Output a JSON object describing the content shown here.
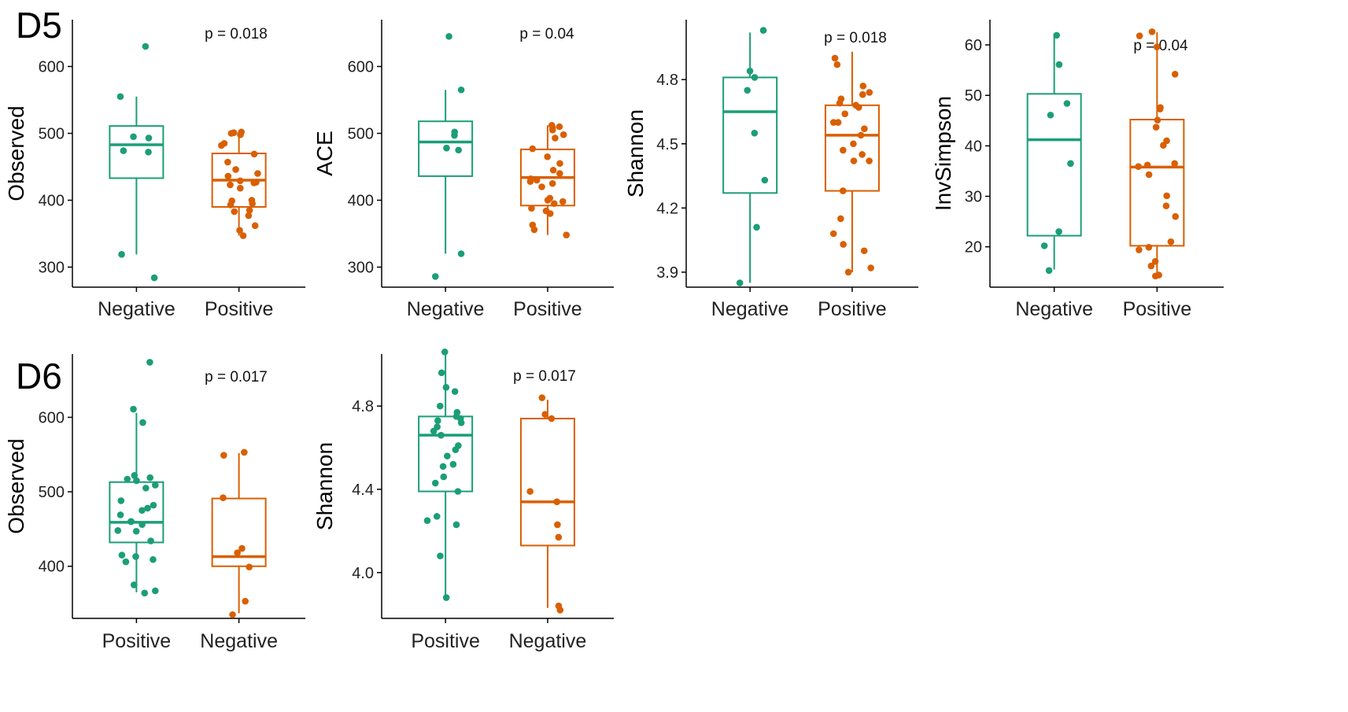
{
  "colors": {
    "green": "#1b9e77",
    "orange": "#d95f02",
    "axis": "#000000"
  },
  "rows": [
    {
      "label": "D5"
    },
    {
      "label": "D6"
    }
  ],
  "chart_data": [
    {
      "type": "boxplot",
      "row": "D5",
      "ylabel": "Observed",
      "p_text": "p = 0.018",
      "ylim": [
        270,
        670
      ],
      "yticks": [
        300,
        400,
        500,
        600
      ],
      "ytick_labels": [
        "300",
        "400",
        "500",
        "600"
      ],
      "groups": [
        {
          "name": "Negative",
          "color": "green",
          "box": {
            "q1": 433,
            "median": 483,
            "q3": 511,
            "lower": 319,
            "upper": 555
          },
          "points": [
            630,
            555,
            495,
            493,
            474,
            472,
            319,
            284
          ]
        },
        {
          "name": "Positive",
          "color": "orange",
          "box": {
            "q1": 390,
            "median": 430,
            "q3": 470,
            "lower": 347,
            "upper": 500
          },
          "points": [
            502,
            501,
            500,
            498,
            485,
            482,
            469,
            457,
            446,
            440,
            436,
            429,
            427,
            426,
            423,
            418,
            400,
            399,
            395,
            393,
            385,
            383,
            377,
            362,
            355,
            347
          ]
        }
      ]
    },
    {
      "type": "boxplot",
      "row": "D5",
      "ylabel": "ACE",
      "p_text": "p = 0.04",
      "ylim": [
        270,
        670
      ],
      "yticks": [
        300,
        400,
        500,
        600
      ],
      "ytick_labels": [
        "300",
        "400",
        "500",
        "600"
      ],
      "groups": [
        {
          "name": "Negative",
          "color": "green",
          "box": {
            "q1": 436,
            "median": 487,
            "q3": 518,
            "lower": 320,
            "upper": 565
          },
          "points": [
            645,
            565,
            502,
            497,
            478,
            475,
            320,
            286
          ]
        },
        {
          "name": "Positive",
          "color": "orange",
          "box": {
            "q1": 392,
            "median": 434,
            "q3": 476,
            "lower": 348,
            "upper": 512
          },
          "points": [
            512,
            510,
            508,
            505,
            498,
            493,
            477,
            465,
            455,
            445,
            440,
            432,
            430,
            428,
            425,
            420,
            403,
            400,
            398,
            395,
            388,
            384,
            380,
            363,
            356,
            348
          ]
        }
      ]
    },
    {
      "type": "boxplot",
      "row": "D5",
      "ylabel": "Shannon",
      "p_text": "p = 0.018",
      "ylim": [
        3.83,
        5.08
      ],
      "yticks": [
        3.9,
        4.2,
        4.5,
        4.8
      ],
      "ytick_labels": [
        "3.9",
        "4.2",
        "4.5",
        "4.8"
      ],
      "groups": [
        {
          "name": "Negative",
          "color": "green",
          "box": {
            "q1": 4.27,
            "median": 4.65,
            "q3": 4.81,
            "lower": 3.85,
            "upper": 5.02
          },
          "points": [
            5.03,
            4.84,
            4.81,
            4.75,
            4.55,
            4.33,
            4.11,
            3.85
          ]
        },
        {
          "name": "Positive",
          "color": "orange",
          "box": {
            "q1": 4.28,
            "median": 4.54,
            "q3": 4.68,
            "lower": 3.9,
            "upper": 4.93
          },
          "points": [
            4.9,
            4.87,
            4.77,
            4.74,
            4.73,
            4.71,
            4.69,
            4.68,
            4.67,
            4.64,
            4.6,
            4.6,
            4.57,
            4.54,
            4.5,
            4.47,
            4.45,
            4.42,
            4.42,
            4.28,
            4.15,
            4.08,
            4.03,
            4.0,
            3.92,
            3.9
          ]
        }
      ]
    },
    {
      "type": "boxplot",
      "row": "D5",
      "ylabel": "InvSimpson",
      "p_text": "p = 0.04",
      "ylim": [
        12,
        65
      ],
      "yticks": [
        20,
        30,
        40,
        50,
        60
      ],
      "ytick_labels": [
        "20",
        "30",
        "40",
        "50",
        "60"
      ],
      "groups": [
        {
          "name": "Negative",
          "color": "green",
          "box": {
            "q1": 22.2,
            "median": 41.2,
            "q3": 50.3,
            "lower": 15.5,
            "upper": 61.7
          },
          "points": [
            61.9,
            56.1,
            48.4,
            46.1,
            36.5,
            23.0,
            20.2,
            15.3
          ]
        },
        {
          "name": "Positive",
          "color": "orange",
          "box": {
            "q1": 20.2,
            "median": 35.8,
            "q3": 45.2,
            "lower": 14.0,
            "upper": 62.5
          },
          "points": [
            62.6,
            61.8,
            59.6,
            54.2,
            47.6,
            47.3,
            45.1,
            43.7,
            41.0,
            40.1,
            36.5,
            36.2,
            35.9,
            34.3,
            30.1,
            28.1,
            26.0,
            21.0,
            19.9,
            19.4,
            17.1,
            16.2,
            14.4,
            14.2
          ]
        }
      ]
    },
    {
      "type": "boxplot",
      "row": "D6",
      "ylabel": "Observed",
      "p_text": "p = 0.017",
      "ylim": [
        330,
        685
      ],
      "yticks": [
        400,
        500,
        600
      ],
      "ytick_labels": [
        "400",
        "500",
        "600"
      ],
      "groups": [
        {
          "name": "Positive",
          "color": "green",
          "box": {
            "q1": 432,
            "median": 459,
            "q3": 513,
            "lower": 365,
            "upper": 606
          },
          "points": [
            674,
            611,
            593,
            522,
            519,
            517,
            515,
            509,
            505,
            488,
            482,
            478,
            475,
            469,
            460,
            460,
            456,
            448,
            447,
            434,
            415,
            413,
            409,
            406,
            375,
            367,
            364
          ]
        },
        {
          "name": "Negative",
          "color": "orange",
          "box": {
            "q1": 400,
            "median": 413,
            "q3": 491,
            "lower": 337,
            "upper": 552
          },
          "points": [
            553,
            549,
            492,
            424,
            418,
            399,
            353,
            335
          ]
        }
      ]
    },
    {
      "type": "boxplot",
      "row": "D6",
      "ylabel": "Shannon",
      "p_text": "p = 0.017",
      "ylim": [
        3.78,
        5.05
      ],
      "yticks": [
        4.0,
        4.4,
        4.8
      ],
      "ytick_labels": [
        "4.0",
        "4.4",
        "4.8"
      ],
      "groups": [
        {
          "name": "Positive",
          "color": "green",
          "box": {
            "q1": 4.39,
            "median": 4.66,
            "q3": 4.75,
            "lower": 3.88,
            "upper": 5.05
          },
          "points": [
            5.06,
            4.96,
            4.89,
            4.87,
            4.8,
            4.77,
            4.75,
            4.74,
            4.73,
            4.72,
            4.7,
            4.68,
            4.66,
            4.61,
            4.59,
            4.56,
            4.52,
            4.51,
            4.46,
            4.43,
            4.39,
            4.27,
            4.25,
            4.23,
            4.08,
            3.88
          ]
        },
        {
          "name": "Negative",
          "color": "orange",
          "box": {
            "q1": 4.13,
            "median": 4.34,
            "q3": 4.74,
            "lower": 3.83,
            "upper": 4.83
          },
          "points": [
            4.84,
            4.76,
            4.74,
            4.39,
            4.34,
            4.23,
            4.17,
            3.84,
            3.82
          ]
        }
      ]
    }
  ]
}
